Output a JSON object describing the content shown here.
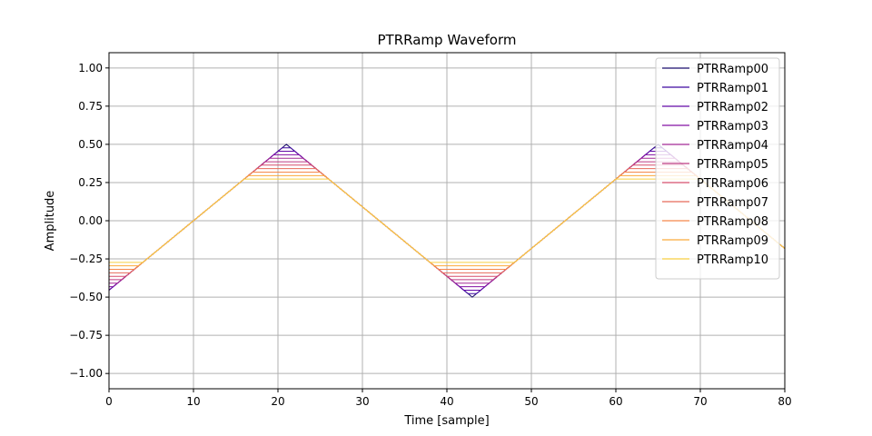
{
  "chart_data": {
    "type": "line",
    "title": "PTRRamp Waveform",
    "xlabel": "Time [sample]",
    "ylabel": "Amplitude",
    "xlim": [
      0,
      80
    ],
    "ylim": [
      -1.1,
      1.1
    ],
    "x_ticks": [
      0,
      10,
      20,
      30,
      40,
      50,
      60,
      70,
      80
    ],
    "y_ticks": [
      -1.0,
      -0.75,
      -0.5,
      -0.25,
      0.0,
      0.25,
      0.5,
      0.75,
      1.0
    ],
    "x_tick_labels": [
      "0",
      "10",
      "20",
      "30",
      "40",
      "50",
      "60",
      "70",
      "80"
    ],
    "y_tick_labels": [
      "−1.00",
      "−0.75",
      "−0.50",
      "−0.25",
      "0.00",
      "0.25",
      "0.50",
      "0.75",
      "1.00"
    ],
    "grid": true,
    "legend_position": "top-right",
    "waveform": {
      "period_samples": 44,
      "first_peak_sample": 21,
      "peak_amplitude": 0.5
    },
    "series": [
      {
        "name": "PTRRamp00",
        "color": "#1b0c6e",
        "peak": 0.5
      },
      {
        "name": "PTRRamp01",
        "color": "#3f08a0",
        "peak": 0.477
      },
      {
        "name": "PTRRamp02",
        "color": "#6309a8",
        "peak": 0.455
      },
      {
        "name": "PTRRamp03",
        "color": "#8410a4",
        "peak": 0.432
      },
      {
        "name": "PTRRamp04",
        "color": "#a32a96",
        "peak": 0.409
      },
      {
        "name": "PTRRamp05",
        "color": "#bd3a82",
        "peak": 0.386
      },
      {
        "name": "PTRRamp06",
        "color": "#d54f6d",
        "peak": 0.364
      },
      {
        "name": "PTRRamp07",
        "color": "#e86a5a",
        "peak": 0.341
      },
      {
        "name": "PTRRamp08",
        "color": "#f5884a",
        "peak": 0.318
      },
      {
        "name": "PTRRamp09",
        "color": "#fbaa3a",
        "peak": 0.295
      },
      {
        "name": "PTRRamp10",
        "color": "#f8cf42",
        "peak": 0.273
      }
    ]
  }
}
